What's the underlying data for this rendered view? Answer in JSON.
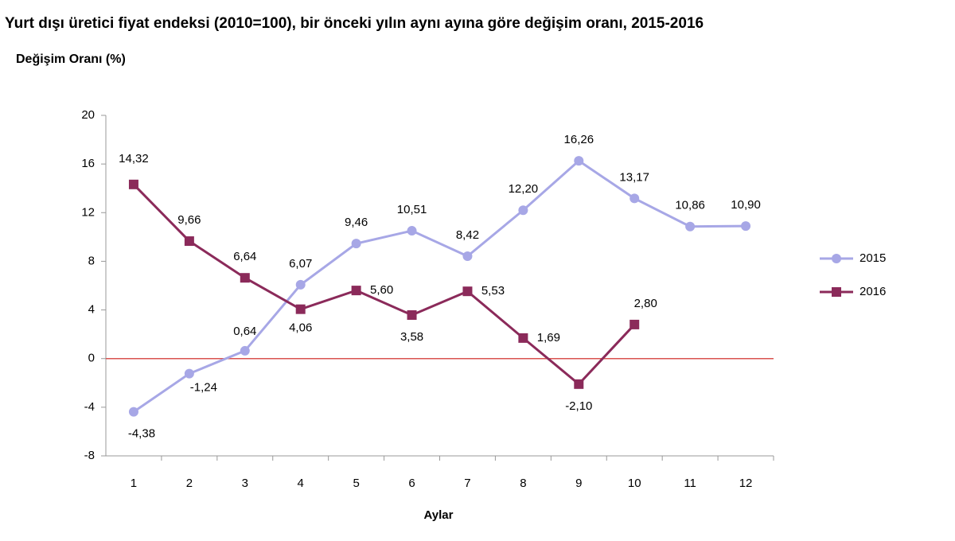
{
  "chart_data": {
    "type": "line",
    "title": "Yurt dışı üretici fiyat endeksi (2010=100), bir önceki yılın aynı ayına göre değişim oranı, 2015-2016",
    "ylabel": "Değişim Oranı (%)",
    "xlabel": "Aylar",
    "categories": [
      "1",
      "2",
      "3",
      "4",
      "5",
      "6",
      "7",
      "8",
      "9",
      "10",
      "11",
      "12"
    ],
    "series": [
      {
        "name": "2015",
        "color": "#a7a7e6",
        "marker": "circle",
        "values": [
          -4.38,
          -1.24,
          0.64,
          6.07,
          9.46,
          10.51,
          8.42,
          12.2,
          16.26,
          13.17,
          10.86,
          10.9
        ],
        "value_labels": [
          "-4,38",
          "-1,24",
          "0,64",
          "6,07",
          "9,46",
          "10,51",
          "8,42",
          "12,20",
          "16,26",
          "13,17",
          "10,86",
          "10,90"
        ]
      },
      {
        "name": "2016",
        "color": "#8b2a5a",
        "marker": "square",
        "values": [
          14.32,
          9.66,
          6.64,
          4.06,
          5.6,
          3.58,
          5.53,
          1.69,
          -2.1,
          2.8,
          null,
          null
        ],
        "value_labels": [
          "14,32",
          "9,66",
          "6,64",
          "4,06",
          "5,60",
          "3,58",
          "5,53",
          "1,69",
          "-2,10",
          "2,80",
          null,
          null
        ]
      }
    ],
    "ylim": [
      -8,
      20
    ],
    "yticks": [
      -8,
      -4,
      0,
      4,
      8,
      12,
      16,
      20
    ],
    "reference_line": 0,
    "reference_color": "#d9534f",
    "legend": "right"
  }
}
